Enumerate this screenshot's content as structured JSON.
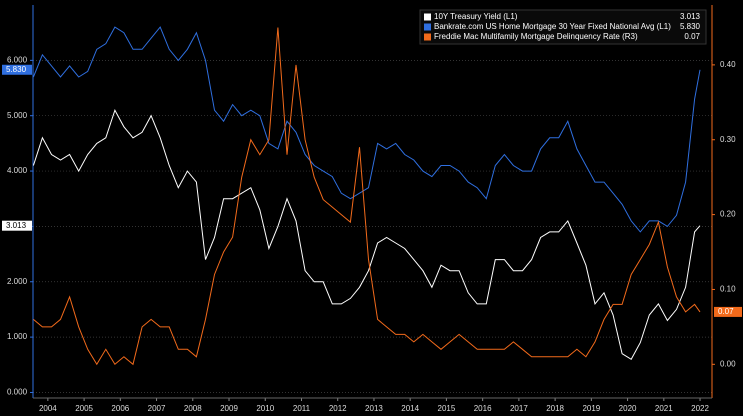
{
  "chart_data": {
    "type": "line",
    "xlim": [
      2004.09,
      2022.83
    ],
    "xticks": [
      {
        "value": 2004.5,
        "label": "2004"
      },
      {
        "value": 2005.5,
        "label": "2005"
      },
      {
        "value": 2006.5,
        "label": "2006"
      },
      {
        "value": 2007.5,
        "label": "2007"
      },
      {
        "value": 2008.5,
        "label": "2008"
      },
      {
        "value": 2009.5,
        "label": "2009"
      },
      {
        "value": 2010.5,
        "label": "2010"
      },
      {
        "value": 2011.5,
        "label": "2011"
      },
      {
        "value": 2012.5,
        "label": "2012"
      },
      {
        "value": 2013.5,
        "label": "2013"
      },
      {
        "value": 2014.5,
        "label": "2014"
      },
      {
        "value": 2015.5,
        "label": "2015"
      },
      {
        "value": 2016.5,
        "label": "2016"
      },
      {
        "value": 2017.5,
        "label": "2017"
      },
      {
        "value": 2018.5,
        "label": "2018"
      },
      {
        "value": 2019.5,
        "label": "2019"
      },
      {
        "value": 2020.5,
        "label": "2020"
      },
      {
        "value": 2021.5,
        "label": "2021"
      },
      {
        "value": 2022.5,
        "label": "2022"
      }
    ],
    "ylim": [
      -0.1,
      7.0
    ],
    "yticks": [
      {
        "value": 0,
        "label": "0.000"
      },
      {
        "value": 1,
        "label": "1.000"
      },
      {
        "value": 2,
        "label": "2.000"
      },
      {
        "value": 3,
        "label": "3.000"
      },
      {
        "value": 4,
        "label": "4.000"
      },
      {
        "value": 5,
        "label": "5.000"
      },
      {
        "value": 6,
        "label": "6.000"
      }
    ],
    "y2lim": [
      -0.045,
      0.48
    ],
    "y2ticks": [
      {
        "value": 0,
        "label": "0.00"
      },
      {
        "value": 0.1,
        "label": "0.10"
      },
      {
        "value": 0.2,
        "label": "0.20"
      },
      {
        "value": 0.3,
        "label": "0.30"
      },
      {
        "value": 0.4,
        "label": "0.40"
      }
    ],
    "grid": true,
    "legend": "top-right",
    "x": [
      2004.1,
      2004.35,
      2004.6,
      2004.85,
      2005.1,
      2005.35,
      2005.6,
      2005.85,
      2006.1,
      2006.35,
      2006.6,
      2006.85,
      2007.1,
      2007.35,
      2007.6,
      2007.85,
      2008.1,
      2008.35,
      2008.6,
      2008.85,
      2009.1,
      2009.35,
      2009.6,
      2009.85,
      2010.1,
      2010.35,
      2010.6,
      2010.85,
      2011.1,
      2011.35,
      2011.6,
      2011.85,
      2012.1,
      2012.35,
      2012.6,
      2012.85,
      2013.1,
      2013.35,
      2013.6,
      2013.85,
      2014.1,
      2014.35,
      2014.6,
      2014.85,
      2015.1,
      2015.35,
      2015.6,
      2015.85,
      2016.1,
      2016.35,
      2016.6,
      2016.85,
      2017.1,
      2017.35,
      2017.6,
      2017.85,
      2018.1,
      2018.35,
      2018.6,
      2018.85,
      2019.1,
      2019.35,
      2019.6,
      2019.85,
      2020.1,
      2020.35,
      2020.6,
      2020.85,
      2021.1,
      2021.35,
      2021.6,
      2021.85,
      2022.1,
      2022.35,
      2022.5
    ],
    "series": [
      {
        "name": "10Y Treasury Yield (L1)",
        "color": "#ffffff",
        "last_label": "3.013",
        "values": [
          4.1,
          4.6,
          4.3,
          4.2,
          4.3,
          4.0,
          4.3,
          4.5,
          4.6,
          5.1,
          4.8,
          4.6,
          4.7,
          5.0,
          4.6,
          4.1,
          3.7,
          4.0,
          3.8,
          2.4,
          2.8,
          3.5,
          3.5,
          3.6,
          3.7,
          3.3,
          2.6,
          3.0,
          3.5,
          3.1,
          2.2,
          2.0,
          2.0,
          1.6,
          1.6,
          1.7,
          1.9,
          2.2,
          2.7,
          2.8,
          2.7,
          2.6,
          2.4,
          2.2,
          1.9,
          2.3,
          2.2,
          2.2,
          1.8,
          1.6,
          1.6,
          2.4,
          2.4,
          2.2,
          2.2,
          2.4,
          2.8,
          2.9,
          2.9,
          3.1,
          2.7,
          2.3,
          1.6,
          1.8,
          1.4,
          0.7,
          0.6,
          0.9,
          1.4,
          1.6,
          1.3,
          1.5,
          1.9,
          2.9,
          3.013
        ]
      },
      {
        "name": "Bankrate.com US Home Mortgage 30 Year Fixed National Avg (L1)",
        "color": "#2f6fe0",
        "last_label": "5.830",
        "values": [
          5.7,
          6.1,
          5.9,
          5.7,
          5.9,
          5.7,
          5.8,
          6.2,
          6.3,
          6.6,
          6.5,
          6.2,
          6.2,
          6.4,
          6.6,
          6.2,
          6.0,
          6.2,
          6.5,
          6.0,
          5.1,
          4.9,
          5.2,
          5.0,
          5.1,
          5.0,
          4.5,
          4.4,
          4.9,
          4.7,
          4.3,
          4.1,
          4.0,
          3.9,
          3.6,
          3.5,
          3.6,
          3.7,
          4.5,
          4.4,
          4.5,
          4.3,
          4.2,
          4.0,
          3.9,
          4.1,
          4.1,
          4.0,
          3.8,
          3.7,
          3.5,
          4.1,
          4.3,
          4.1,
          4.0,
          4.0,
          4.4,
          4.6,
          4.6,
          4.9,
          4.4,
          4.1,
          3.8,
          3.8,
          3.6,
          3.4,
          3.1,
          2.9,
          3.1,
          3.1,
          3.0,
          3.2,
          3.8,
          5.3,
          5.83
        ]
      },
      {
        "name": "Freddie Mac Multifamily Mortgage Delinquency Rate (R3)",
        "color": "#f26a1b",
        "axis": "y2",
        "last_label": "0.07",
        "values": [
          0.06,
          0.05,
          0.05,
          0.06,
          0.09,
          0.05,
          0.02,
          0.0,
          0.02,
          0.0,
          0.01,
          0.0,
          0.05,
          0.06,
          0.05,
          0.05,
          0.02,
          0.02,
          0.01,
          0.06,
          0.12,
          0.15,
          0.17,
          0.25,
          0.3,
          0.28,
          0.3,
          0.45,
          0.28,
          0.4,
          0.3,
          0.25,
          0.22,
          0.21,
          0.2,
          0.19,
          0.29,
          0.14,
          0.06,
          0.05,
          0.04,
          0.04,
          0.03,
          0.04,
          0.03,
          0.02,
          0.03,
          0.04,
          0.03,
          0.02,
          0.02,
          0.02,
          0.02,
          0.03,
          0.02,
          0.01,
          0.01,
          0.01,
          0.01,
          0.01,
          0.02,
          0.01,
          0.03,
          0.06,
          0.08,
          0.08,
          0.12,
          0.14,
          0.16,
          0.19,
          0.13,
          0.09,
          0.07,
          0.08,
          0.07
        ]
      }
    ]
  }
}
